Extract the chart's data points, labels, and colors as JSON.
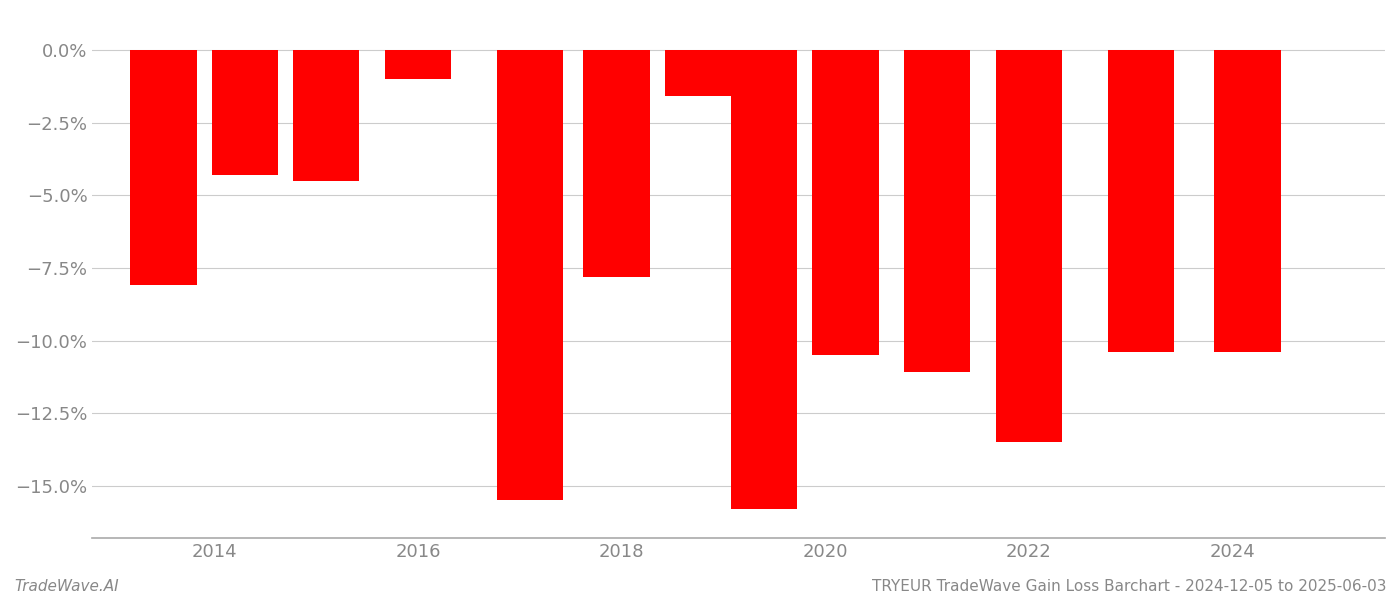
{
  "x_positions": [
    2013.5,
    2014.3,
    2015.1,
    2016.0,
    2017.1,
    2017.95,
    2018.75,
    2019.4,
    2020.2,
    2021.1,
    2022.0,
    2023.1,
    2024.15
  ],
  "values": [
    -0.081,
    -0.043,
    -0.045,
    -0.01,
    -0.155,
    -0.078,
    -0.016,
    -0.158,
    -0.105,
    -0.111,
    -0.135,
    -0.104,
    -0.104
  ],
  "bar_width": 0.65,
  "bar_color": "#ff0000",
  "background_color": "#ffffff",
  "footer_left": "TradeWave.AI",
  "footer_right": "TRYEUR TradeWave Gain Loss Barchart - 2024-12-05 to 2025-06-03",
  "ylim": [
    -0.168,
    0.012
  ],
  "yticks": [
    0.0,
    -0.025,
    -0.05,
    -0.075,
    -0.1,
    -0.125,
    -0.15
  ],
  "ytick_labels": [
    "0.0%",
    "-2.5%",
    "-5.0%",
    "-7.5%",
    "-10.0%",
    "-12.5%",
    "-15.0%"
  ],
  "xlim": [
    2012.8,
    2025.5
  ],
  "xticks": [
    2014,
    2016,
    2018,
    2020,
    2022,
    2024
  ],
  "grid_color": "#cccccc",
  "tick_color": "#888888",
  "spine_color": "#aaaaaa",
  "footer_fontsize": 11,
  "tick_fontsize": 13
}
